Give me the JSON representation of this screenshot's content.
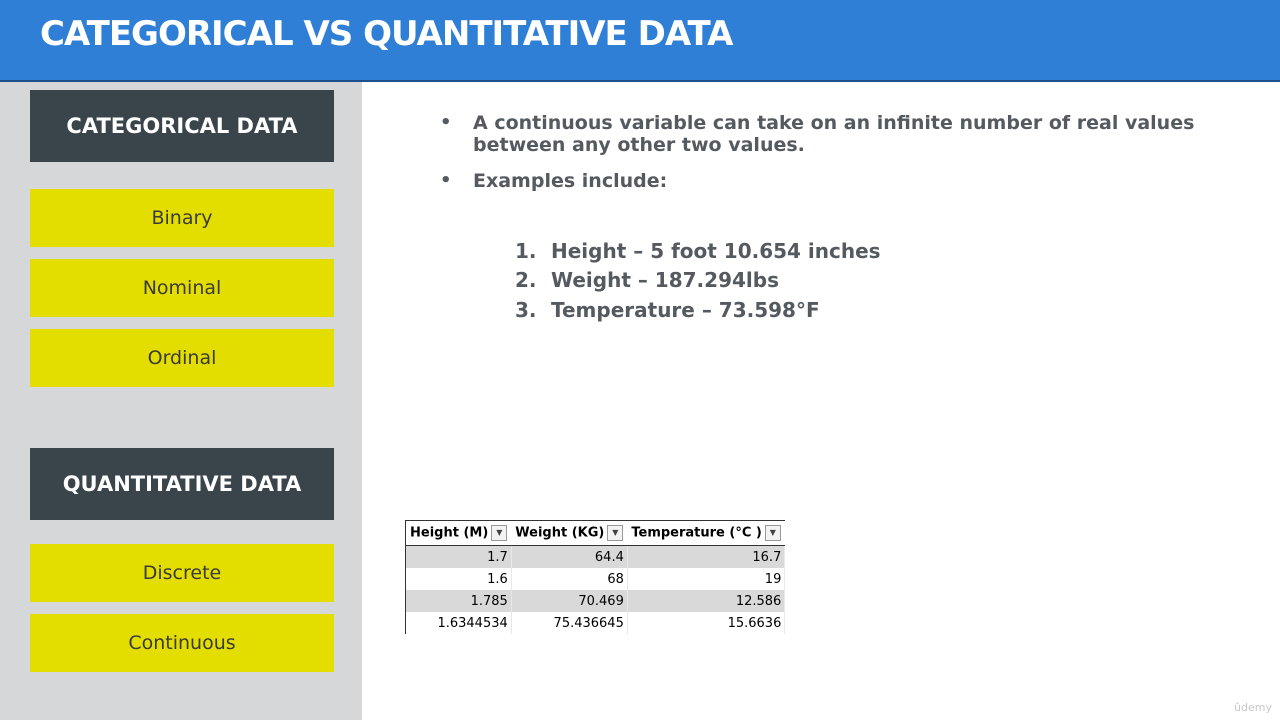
{
  "title": "CATEGORICAL VS QUANTITATIVE DATA",
  "sidebar": {
    "categorical_header": "CATEGORICAL DATA",
    "categorical_items": [
      "Binary",
      "Nominal",
      "Ordinal"
    ],
    "quantitative_header": "QUANTITATIVE DATA",
    "quantitative_items": [
      "Discrete",
      "Continuous"
    ]
  },
  "content": {
    "bullets": [
      "A continuous variable can take on an infinite number of real values between any other two values.",
      "Examples include:"
    ],
    "examples": [
      {
        "num": "1.",
        "text": "Height – 5 foot 10.654 inches"
      },
      {
        "num": "2.",
        "text": "Weight – 187.294lbs"
      },
      {
        "num": "3.",
        "text": "Temperature – 73.598°F"
      }
    ]
  },
  "table": {
    "headers": [
      "Height (M)",
      "Weight (KG)",
      "Temperature (°C )"
    ],
    "rows": [
      [
        "1.7",
        "64.4",
        "16.7"
      ],
      [
        "1.6",
        "68",
        "19"
      ],
      [
        "1.785",
        "70.469",
        "12.586"
      ],
      [
        "1.6344534",
        "75.436645",
        "15.6636"
      ]
    ]
  },
  "watermark": "ûdemy",
  "colors": {
    "header_bg": "#2f7fd6",
    "sidebar_bg": "#d6d7d9",
    "dark_box": "#3a454b",
    "yellow_box": "#e4de00",
    "body_text": "#545a5f"
  }
}
